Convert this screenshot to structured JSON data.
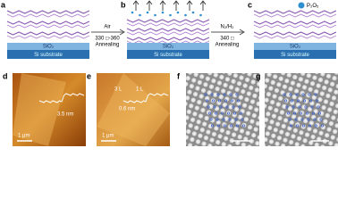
{
  "panels": [
    {
      "label": "a",
      "oxide": "SiO₂",
      "base": "Si substrate"
    },
    {
      "label": "b",
      "oxide": "SiO₂",
      "base": "Si substrate"
    },
    {
      "label": "c",
      "oxide": "SiO₂",
      "base": "Si substrate"
    }
  ],
  "arrows": [
    {
      "top": "Air",
      "lines": [
        "330 □-360",
        "Annealing"
      ]
    },
    {
      "top": "N₂/H₂",
      "lines": [
        "340 □",
        "Annealing"
      ]
    }
  ],
  "legend": "P₂O₅",
  "afm": [
    {
      "label": "d",
      "height": "3.5 nm",
      "scale": "1 μm"
    },
    {
      "label": "e",
      "layers": [
        "3 L",
        "1 L"
      ],
      "height": "0.6 nm",
      "scale": "1 μm"
    }
  ],
  "stm": [
    {
      "label": "f"
    },
    {
      "label": "g"
    }
  ]
}
